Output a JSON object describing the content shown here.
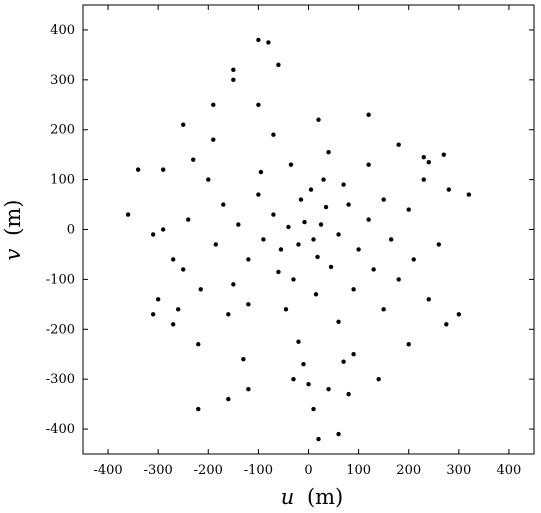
{
  "chart_data": {
    "type": "scatter",
    "title": "",
    "xlabel": {
      "var": "u",
      "unit": "(m)"
    },
    "ylabel": {
      "var": "v",
      "unit": "(m)"
    },
    "xlim": [
      -450,
      450
    ],
    "ylim": [
      -450,
      450
    ],
    "xticks": [
      "-400",
      "-300",
      "-200",
      "-100",
      "0",
      "100",
      "200",
      "300",
      "400"
    ],
    "yticks": [
      "400",
      "300",
      "200",
      "100",
      "0",
      "-100",
      "-200",
      "-300",
      "-400"
    ],
    "grid": false,
    "legend": "none",
    "marker_color": "#000000",
    "description_pattern": "uv-coverage arc tracks (Earth-rotation synthesis), concentrated within about 250 m radius",
    "series": [
      {
        "points": [
          [
            -8,
            15
          ],
          [
            10,
            -20
          ],
          [
            25,
            10
          ],
          [
            -20,
            -30
          ],
          [
            35,
            45
          ],
          [
            -40,
            5
          ],
          [
            18,
            -55
          ],
          [
            -55,
            -40
          ],
          [
            60,
            -10
          ],
          [
            -15,
            60
          ],
          [
            5,
            80
          ],
          [
            -70,
            30
          ],
          [
            80,
            50
          ],
          [
            45,
            -75
          ],
          [
            -90,
            -20
          ],
          [
            30,
            100
          ],
          [
            -30,
            -100
          ],
          [
            100,
            -40
          ],
          [
            -100,
            70
          ],
          [
            70,
            90
          ],
          [
            -60,
            -85
          ],
          [
            120,
            20
          ],
          [
            -120,
            -60
          ],
          [
            15,
            -130
          ],
          [
            -35,
            130
          ],
          [
            130,
            -80
          ],
          [
            -140,
            10
          ],
          [
            90,
            -120
          ],
          [
            -95,
            115
          ],
          [
            150,
            60
          ],
          [
            -150,
            -110
          ],
          [
            40,
            155
          ],
          [
            -45,
            -160
          ],
          [
            165,
            -20
          ],
          [
            -170,
            50
          ],
          [
            120,
            130
          ],
          [
            -120,
            -150
          ],
          [
            180,
            -100
          ],
          [
            -185,
            -30
          ],
          [
            60,
            -185
          ],
          [
            -70,
            190
          ],
          [
            200,
            40
          ],
          [
            -200,
            100
          ],
          [
            150,
            -160
          ],
          [
            -160,
            -170
          ],
          [
            210,
            -60
          ],
          [
            -215,
            -120
          ],
          [
            20,
            220
          ],
          [
            -20,
            -225
          ],
          [
            230,
            100
          ],
          [
            -240,
            20
          ],
          [
            180,
            170
          ],
          [
            -190,
            180
          ],
          [
            240,
            -140
          ],
          [
            -250,
            -80
          ],
          [
            90,
            -250
          ],
          [
            -100,
            250
          ],
          [
            260,
            -30
          ],
          [
            -270,
            -190
          ],
          [
            120,
            230
          ],
          [
            -130,
            -260
          ],
          [
            280,
            80
          ],
          [
            -290,
            120
          ],
          [
            200,
            -230
          ],
          [
            -220,
            -230
          ],
          [
            300,
            -170
          ],
          [
            -310,
            -10
          ],
          [
            270,
            150
          ],
          [
            -30,
            -300
          ],
          [
            0,
            -310
          ],
          [
            40,
            -320
          ],
          [
            -60,
            330
          ],
          [
            80,
            -330
          ],
          [
            -120,
            -320
          ],
          [
            140,
            -300
          ],
          [
            -150,
            300
          ],
          [
            -160,
            -340
          ],
          [
            230,
            145
          ],
          [
            -360,
            30
          ],
          [
            320,
            70
          ],
          [
            -340,
            120
          ],
          [
            -310,
            -170
          ],
          [
            -260,
            -160
          ],
          [
            -300,
            -140
          ],
          [
            275,
            -190
          ],
          [
            240,
            135
          ],
          [
            -220,
            -360
          ],
          [
            20,
            -420
          ],
          [
            60,
            -410
          ],
          [
            -100,
            380
          ],
          [
            -80,
            375
          ],
          [
            -150,
            320
          ],
          [
            -190,
            250
          ],
          [
            -250,
            210
          ],
          [
            -230,
            140
          ],
          [
            -290,
            0
          ],
          [
            -270,
            -60
          ],
          [
            10,
            -360
          ],
          [
            -10,
            -270
          ],
          [
            70,
            -265
          ]
        ]
      }
    ]
  }
}
